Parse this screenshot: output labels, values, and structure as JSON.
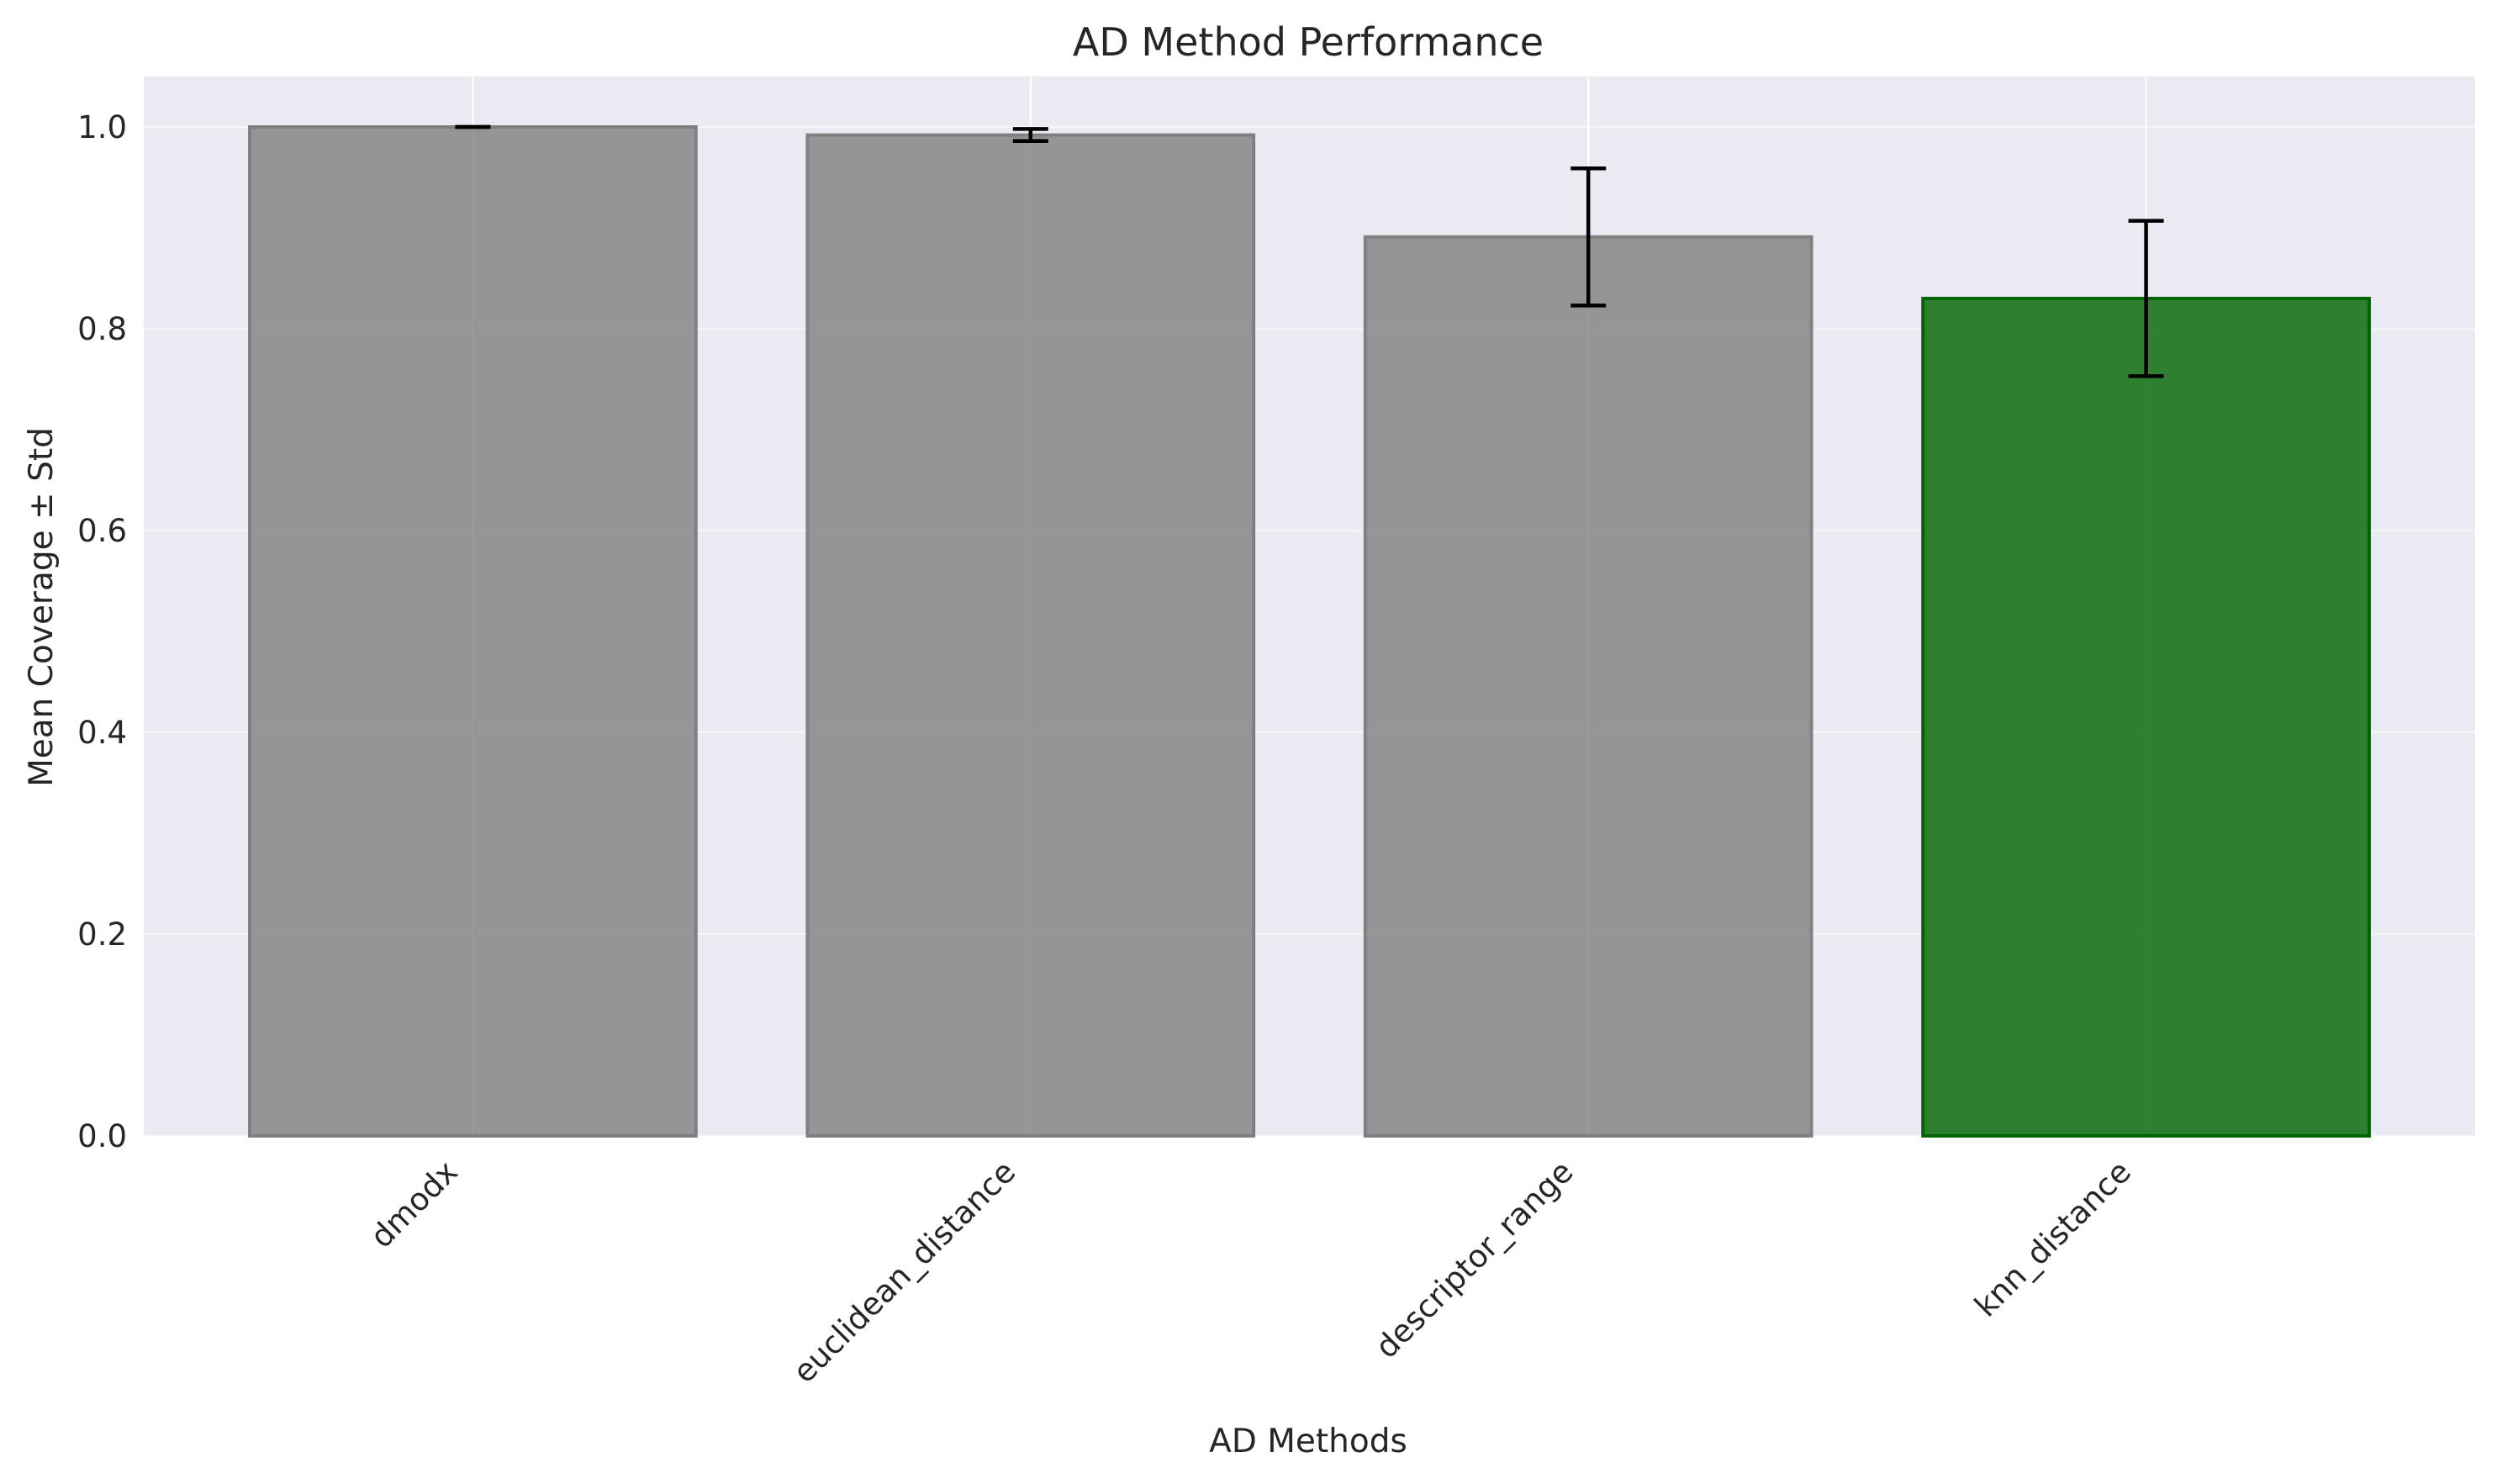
{
  "chart_data": {
    "type": "bar",
    "title": "AD Method Performance",
    "xlabel": "AD Methods",
    "ylabel": "Mean Coverage ± Std",
    "categories": [
      "dmodx",
      "euclidean_distance",
      "descriptor_range",
      "knn_distance"
    ],
    "series": [
      {
        "values": [
          1.0,
          0.992,
          0.891,
          0.83
        ],
        "errors": [
          0.0,
          0.006,
          0.068,
          0.077
        ]
      }
    ],
    "bar_colors": [
      "#808080",
      "#808080",
      "#808080",
      "#006400"
    ],
    "bar_opacity": 0.8,
    "ylim": [
      0,
      1.05
    ],
    "yticks": [
      0.0,
      0.2,
      0.4,
      0.6,
      0.8,
      1.0
    ],
    "ytick_labels": [
      "0.0",
      "0.2",
      "0.4",
      "0.6",
      "0.8",
      "1.0"
    ],
    "grid": true,
    "legend": "none",
    "background": "#eaeaf2"
  }
}
